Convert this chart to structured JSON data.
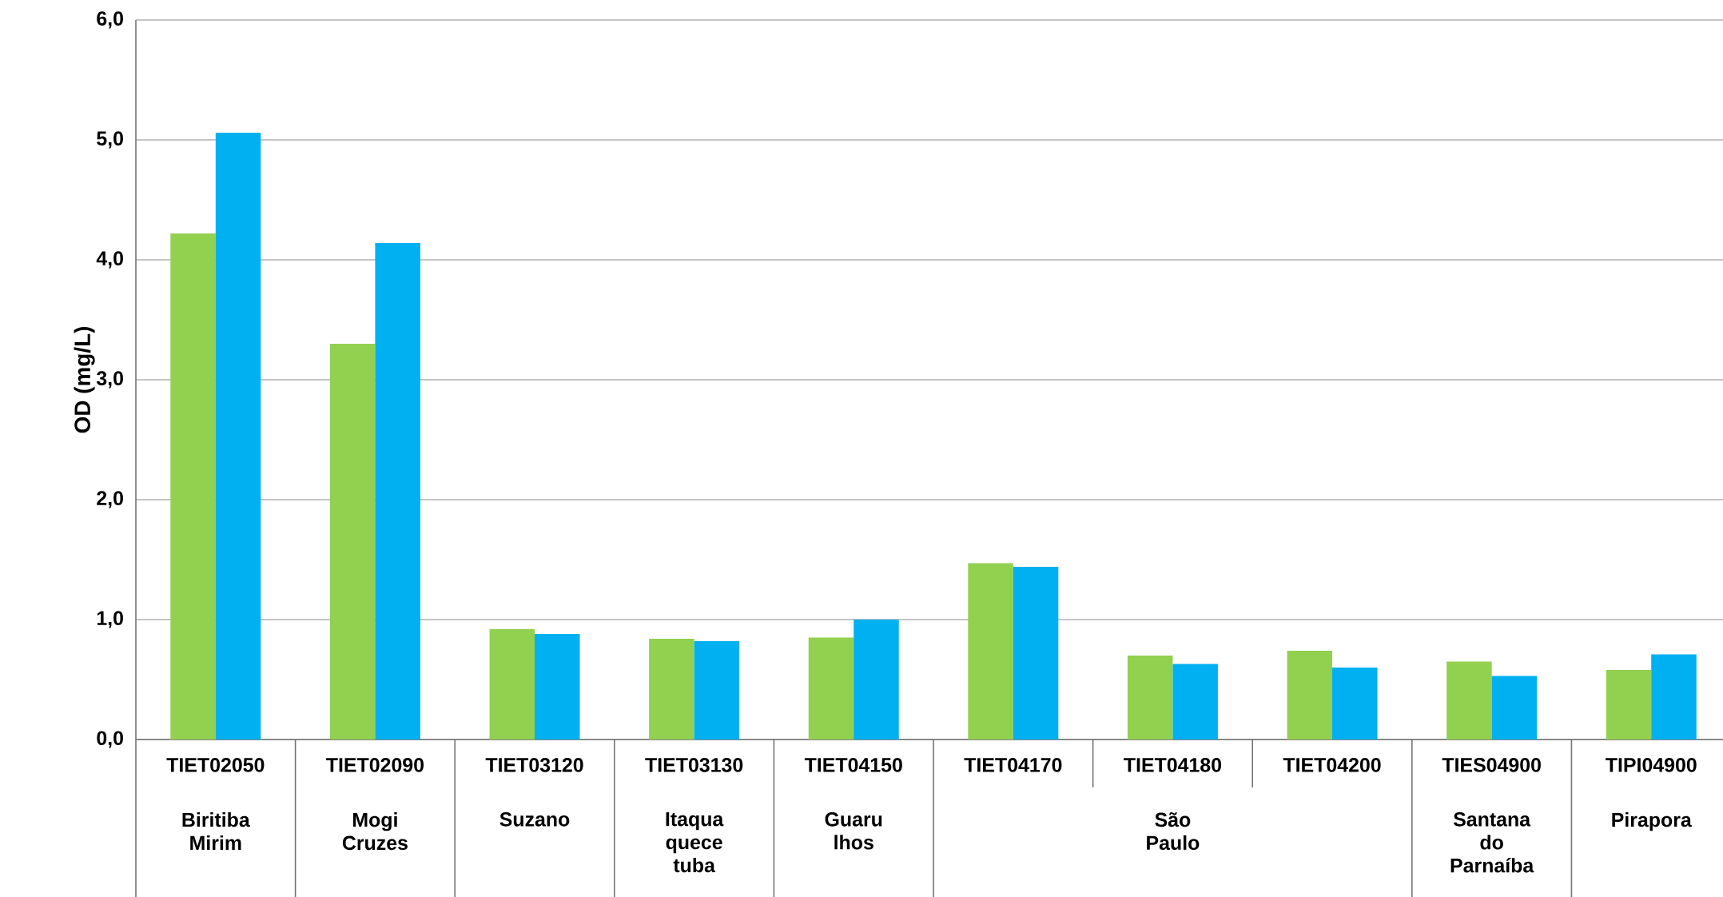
{
  "chart_data": {
    "type": "bar",
    "ylabel": "OD (mg/L)",
    "categories": [
      "TIET02050",
      "TIET02090",
      "TIET03120",
      "TIET03130",
      "TIET04150",
      "TIET04170",
      "TIET04180",
      "TIET04200",
      "TIES04900",
      "TIPI04900"
    ],
    "series": [
      {
        "color": "#92d050",
        "values": [
          4.22,
          3.3,
          0.92,
          0.84,
          0.85,
          1.47,
          0.7,
          0.74,
          0.65,
          0.58
        ]
      },
      {
        "color": "#00b0f0",
        "values": [
          5.06,
          4.14,
          0.88,
          0.82,
          1.0,
          1.44,
          0.63,
          0.6,
          0.53,
          0.71
        ]
      }
    ],
    "ylim": [
      0,
      6
    ],
    "yticks": [
      {
        "value": 0,
        "label": "0,0"
      },
      {
        "value": 1,
        "label": "1,0"
      },
      {
        "value": 2,
        "label": "2,0"
      },
      {
        "value": 3,
        "label": "3,0"
      },
      {
        "value": 4,
        "label": "4,0"
      },
      {
        "value": 5,
        "label": "5,0"
      },
      {
        "value": 6,
        "label": "6,0"
      }
    ],
    "grid": "y",
    "annotations": [
      "Biritiba Mirim",
      "Mogi Cruzes",
      "Suzano",
      "Itaqua quece tuba",
      "Guaru lhos",
      "São Paulo",
      "Santana do Parnaíba",
      "Pirapora"
    ]
  }
}
